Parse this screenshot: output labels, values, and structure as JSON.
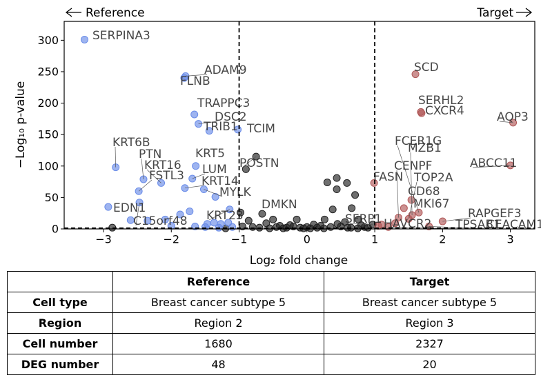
{
  "chart_data": {
    "type": "scatter",
    "left_label": "Reference",
    "right_label": "Target",
    "x_label": "Log₂ fold change",
    "y_label": "−Log₁₀ p-value",
    "xlim": [
      -3.58,
      3.36
    ],
    "ylim": [
      0,
      330
    ],
    "xticks": [
      {
        "value": -3,
        "label": "−3"
      },
      {
        "value": -2,
        "label": "−2"
      },
      {
        "value": -1,
        "label": "−1"
      },
      0,
      1,
      2,
      3
    ],
    "yticks": [
      0,
      50,
      100,
      150,
      200,
      250,
      300
    ],
    "thresholds": {
      "x": [
        -1,
        1
      ],
      "y": 1.3
    },
    "series": [
      {
        "color": "#6a8ce8",
        "x": [
          -3.28,
          -1.79,
          -1.81,
          -1.66,
          -1.6,
          -1.44,
          -1.02,
          -2.82,
          -1.64,
          -2.41,
          -2.15,
          -1.69,
          -2.48,
          -1.8,
          -1.52,
          -2.93,
          -2.47,
          -1.14,
          -1.35,
          -2.6,
          -2.35,
          -2.09,
          -1.87,
          -1.73,
          -1.47,
          -1.37,
          -1.27,
          -1.16,
          -1.5,
          -1.3,
          -1.1,
          -2.0,
          -1.65
        ],
        "values": [
          301,
          243,
          240,
          182,
          167,
          156,
          158,
          98,
          100,
          79,
          73,
          80,
          60,
          65,
          63,
          35,
          42,
          31,
          51,
          14,
          13,
          15,
          23,
          28,
          8,
          10,
          8,
          10,
          3,
          2,
          3,
          5,
          4
        ],
        "labels": [
          "SERPINA3",
          "ADAM9",
          "FLNB",
          "TRAPPC3",
          "DSC2",
          "TRIB1",
          "TCIM",
          "KRT6B",
          "KRT5",
          "PTN",
          "KRT16",
          "LUM",
          "FSTL3",
          "KRT14",
          "MYLK",
          "EDN1",
          "C15orf48",
          "KRT23",
          null,
          null,
          null,
          null,
          null,
          null,
          null,
          null,
          null,
          null,
          null,
          null,
          null,
          null,
          null
        ]
      },
      {
        "color": "#b05858",
        "x": [
          1.6,
          1.68,
          1.69,
          3.04,
          3.0,
          0.99,
          1.54,
          1.43,
          1.65,
          1.55,
          1.35,
          1.5,
          2.0,
          1.05,
          1.2,
          1.8,
          1.1,
          1.3
        ],
        "values": [
          246,
          186,
          184,
          169,
          101,
          73,
          46,
          33,
          26,
          22,
          18,
          16,
          12,
          5,
          3,
          4,
          7,
          9
        ],
        "labels": [
          "SCD",
          "SERHL2",
          "CXCR4",
          "AQP3",
          "ABCC11",
          "FASN",
          "CD68",
          "MKI67",
          "FCER1G",
          "MZB1",
          "CENPF",
          "TOP2A",
          "RAPGEF3",
          "HAVCR2",
          "TPSAB1",
          "CEACAM1",
          null,
          null
        ]
      },
      {
        "color": "#222222",
        "x": [
          -0.9,
          -0.75,
          0.3,
          0.44,
          0.59,
          0.44,
          0.71,
          0.38,
          0.26,
          -0.15,
          -0.5,
          -0.86,
          -0.66,
          -0.98,
          0.66,
          0.76,
          0.56,
          0.1,
          -0.25,
          0.97,
          -0.4,
          -0.6,
          -0.2,
          0.0,
          0.2,
          0.5,
          0.8,
          -0.8,
          -0.3,
          0.15,
          0.35,
          0.65,
          -0.05,
          -0.7,
          0.9,
          -0.95,
          0.05,
          0.45,
          -0.45,
          0.85,
          -0.1,
          0.25,
          0.6,
          -0.35,
          -0.55,
          0.75,
          -2.87,
          -1.2
        ],
        "values": [
          95,
          115,
          74,
          81,
          73,
          63,
          54,
          31,
          15,
          15,
          15,
          13,
          24,
          26,
          33,
          15,
          11,
          7,
          6,
          7,
          5,
          9,
          4,
          3,
          5,
          4,
          6,
          3,
          2,
          2,
          3,
          2,
          1,
          2,
          2,
          4,
          1,
          8,
          3,
          3,
          2,
          1,
          2,
          1,
          1,
          1,
          2,
          1
        ],
        "labels": [
          null,
          "POSTN",
          null,
          null,
          null,
          null,
          null,
          null,
          null,
          null,
          null,
          null,
          "DMKN",
          null,
          null,
          null,
          null,
          null,
          null,
          "SFRP1",
          null,
          null,
          null,
          null,
          null,
          null,
          null,
          null,
          null,
          null,
          null,
          null,
          null,
          null,
          null,
          null,
          null,
          null,
          null,
          null,
          null,
          null,
          null,
          null,
          null,
          null,
          null,
          null
        ]
      }
    ]
  },
  "table": {
    "columns": [
      "Reference",
      "Target"
    ],
    "rows": [
      {
        "label": "Cell type",
        "values": [
          "Breast cancer subtype 5",
          "Breast cancer subtype 5"
        ]
      },
      {
        "label": "Region",
        "values": [
          "Region 2",
          "Region 3"
        ]
      },
      {
        "label": "Cell number",
        "values": [
          1680,
          2327
        ]
      },
      {
        "label": "DEG number",
        "values": [
          48,
          20
        ]
      }
    ]
  }
}
